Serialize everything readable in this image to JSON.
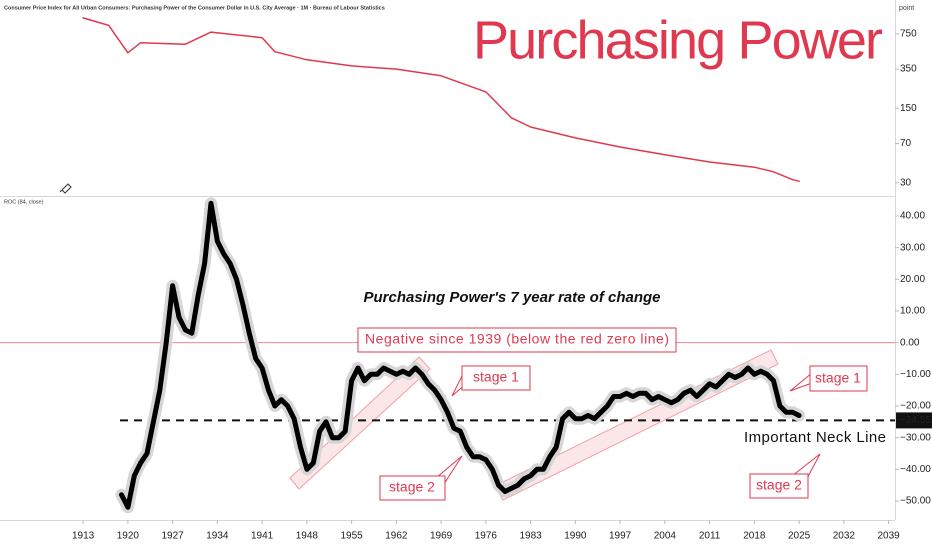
{
  "chart_data": [
    {
      "type": "line",
      "yscale": "log",
      "title": "Consumer Price Index for All Urban Consumers: Purchasing Power of the Consumer Dollar in U.S. City Average · 1M · Bureau of Labour Statistics",
      "headline": "Purchasing Power",
      "unit_label": "point",
      "x": [
        1913,
        1917,
        1920,
        1922,
        1929,
        1933,
        1941,
        1943,
        1948,
        1955,
        1962,
        1969,
        1976,
        1980,
        1983,
        1990,
        1997,
        2004,
        2011,
        2018,
        2021,
        2024,
        2025
      ],
      "series": [
        {
          "color": "#e0394f",
          "values": [
            1060,
            900,
            498,
            620,
            600,
            780,
            690,
            510,
            428,
            375,
            350,
            303,
            214,
            122,
            100,
            79,
            65,
            55,
            47,
            42,
            38,
            32,
            31
          ]
        }
      ],
      "xlim": [
        1900,
        2040
      ],
      "ylim": [
        23,
        1560
      ],
      "yticks": [
        30,
        70,
        150,
        350,
        750
      ]
    },
    {
      "type": "line",
      "indicator_label": "ROC (84, close)",
      "subtitle": "Purchasing Power's 7 year rate of change",
      "annotations": [
        "Negative since 1939 (below the red zero line)",
        "stage 1",
        "stage 1",
        "stage 2",
        "stage 2",
        "Important Neck Line"
      ],
      "x": [
        1919,
        1920,
        1921,
        1922,
        1923,
        1924,
        1925,
        1926,
        1927,
        1928,
        1929,
        1930,
        1931,
        1932,
        1933,
        1934,
        1935,
        1936,
        1937,
        1938,
        1939,
        1940,
        1941,
        1942,
        1943,
        1944,
        1945,
        1946,
        1947,
        1948,
        1949,
        1950,
        1951,
        1952,
        1953,
        1954,
        1955,
        1956,
        1957,
        1958,
        1959,
        1960,
        1961,
        1962,
        1963,
        1964,
        1965,
        1966,
        1967,
        1968,
        1969,
        1970,
        1971,
        1972,
        1973,
        1974,
        1975,
        1976,
        1977,
        1978,
        1979,
        1980,
        1981,
        1982,
        1983,
        1984,
        1985,
        1986,
        1987,
        1988,
        1989,
        1990,
        1991,
        1992,
        1993,
        1994,
        1995,
        1996,
        1997,
        1998,
        1999,
        2000,
        2001,
        2002,
        2003,
        2004,
        2005,
        2006,
        2007,
        2008,
        2009,
        2010,
        2011,
        2012,
        2013,
        2014,
        2015,
        2016,
        2017,
        2018,
        2019,
        2020,
        2021,
        2022,
        2023,
        2024,
        2025
      ],
      "series": [
        {
          "color": "#000000",
          "values": [
            -48,
            -52,
            -42,
            -38,
            -35,
            -25,
            -15,
            0,
            18,
            8,
            4,
            3,
            15,
            25,
            44,
            32,
            28,
            25,
            20,
            12,
            3,
            -5,
            -8,
            -15,
            -20,
            -18,
            -20,
            -24,
            -33,
            -40,
            -38,
            -28,
            -25,
            -30,
            -30,
            -28,
            -12,
            -8,
            -12,
            -10,
            -10,
            -8,
            -9,
            -10,
            -9,
            -10,
            -8,
            -10,
            -13,
            -15,
            -18,
            -22,
            -27,
            -28,
            -33,
            -36,
            -36,
            -37,
            -40,
            -45,
            -47,
            -46,
            -45,
            -43,
            -42,
            -40,
            -40,
            -36,
            -33,
            -24,
            -22,
            -24,
            -24,
            -23,
            -24,
            -22,
            -20,
            -17,
            -17,
            -16,
            -17,
            -16,
            -16,
            -18,
            -17,
            -18,
            -19,
            -18,
            -16,
            -15,
            -17,
            -15,
            -13,
            -14,
            -12,
            -10,
            -11,
            -10,
            -8,
            -10,
            -9,
            -10,
            -12,
            -20,
            -22,
            -22,
            -23
          ]
        }
      ],
      "reference_line": 0,
      "neck_line": {
        "value": -24.55,
        "label": "−24.55"
      },
      "xlim": [
        1900,
        2040
      ],
      "ylim": [
        -56,
        46
      ],
      "xticks": [
        1913,
        1920,
        1927,
        1934,
        1941,
        1948,
        1955,
        1962,
        1969,
        1976,
        1983,
        1990,
        1997,
        2004,
        2011,
        2018,
        2025,
        2032,
        2039
      ],
      "yticks": [
        {
          "value": 40,
          "label": "40.00"
        },
        {
          "value": 30,
          "label": "30.00"
        },
        {
          "value": 20,
          "label": "20.00"
        },
        {
          "value": 10,
          "label": "10.00"
        },
        {
          "value": 0,
          "label": "0.00"
        },
        {
          "value": -10,
          "label": "−10.00"
        },
        {
          "value": -20,
          "label": "−20.00"
        },
        {
          "value": -30,
          "label": "−30.00"
        },
        {
          "value": -40,
          "label": "−40.00"
        },
        {
          "value": -50,
          "label": "−50.00"
        }
      ]
    }
  ]
}
